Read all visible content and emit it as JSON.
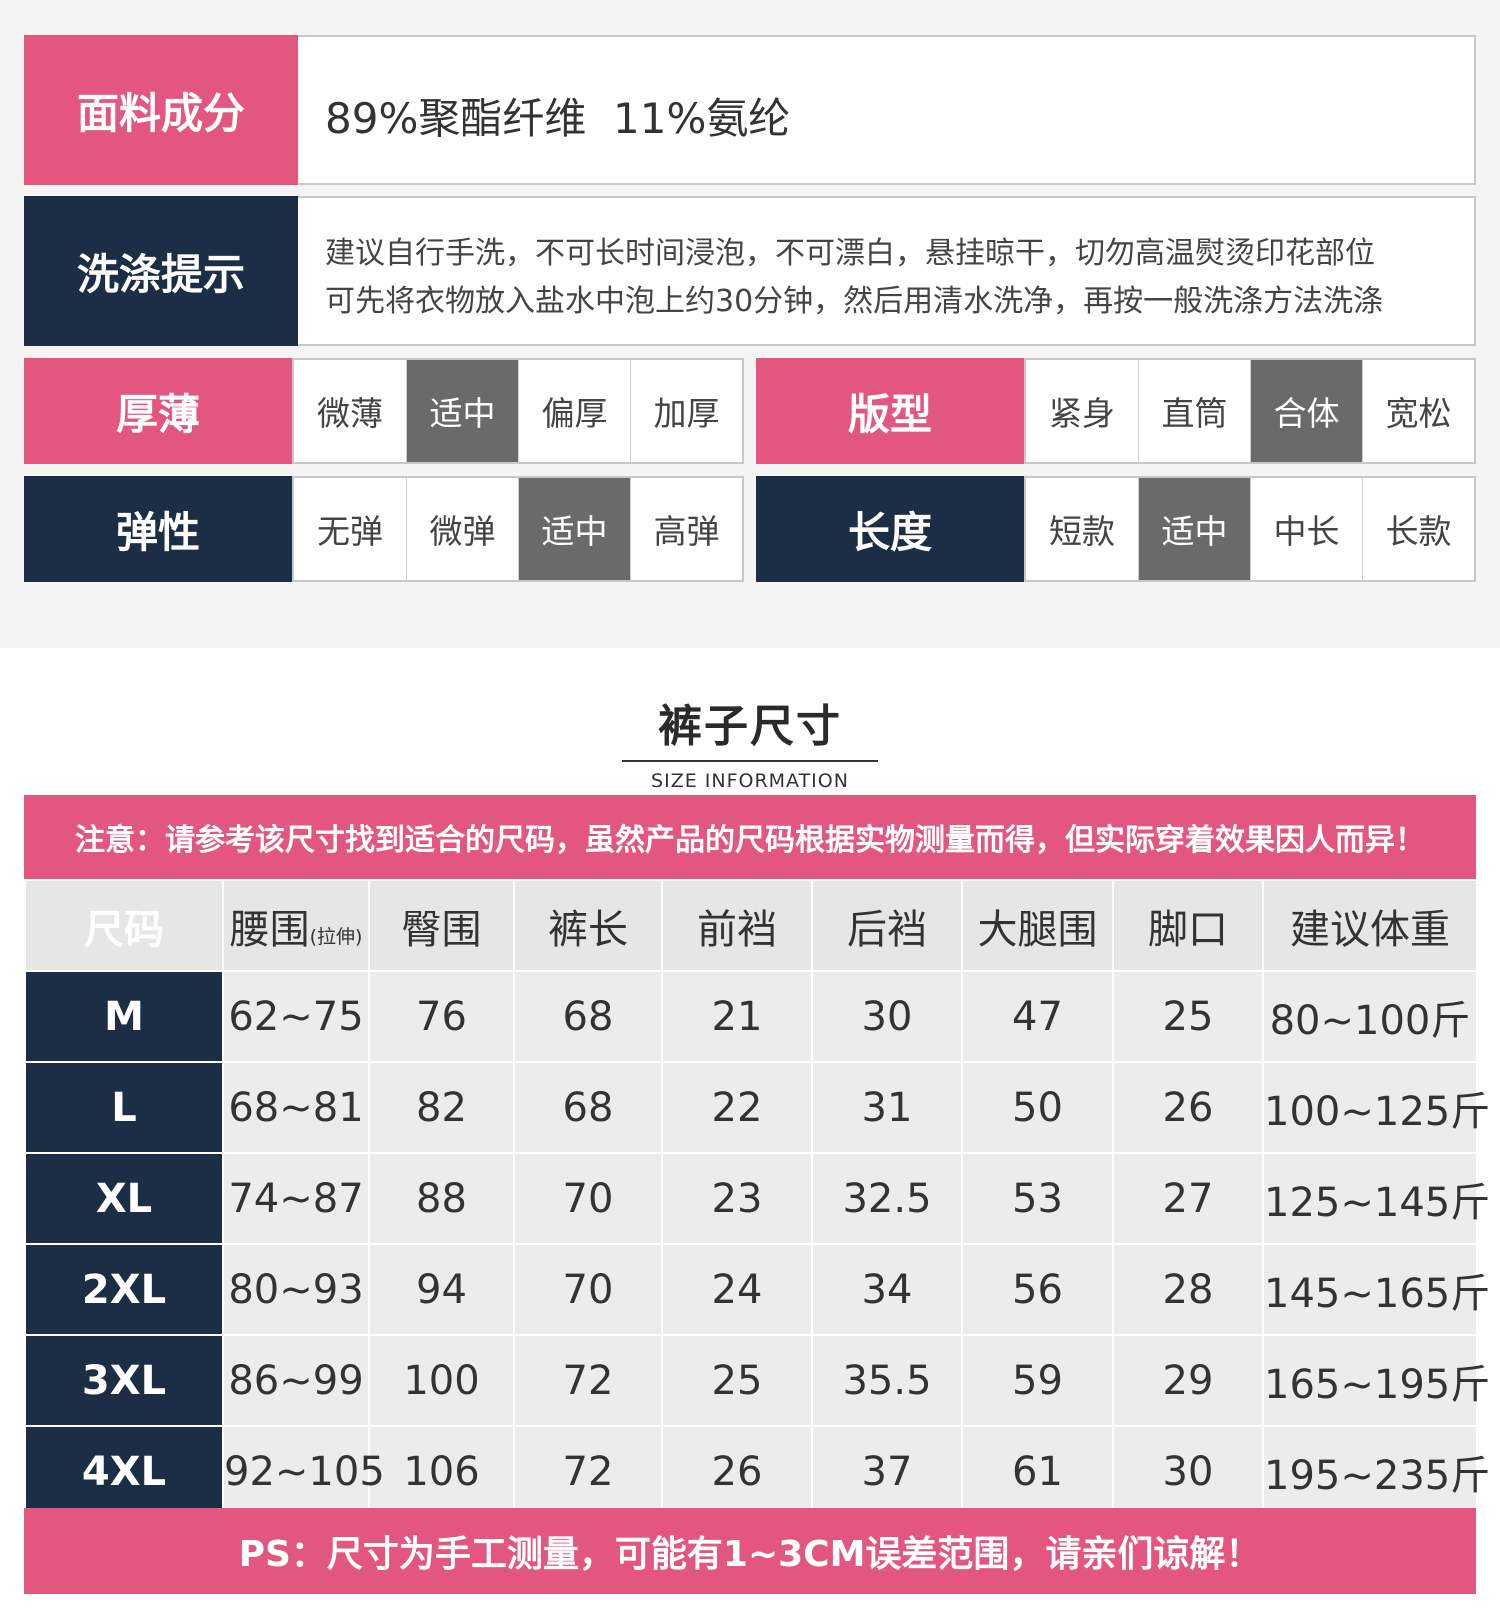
{
  "material": {
    "label": "面料成分",
    "value": "89%聚酯纤维  11%氨纶"
  },
  "washing": {
    "label": "洗涤提示",
    "line1": "建议自行手洗，不可长时间浸泡，不可漂白，悬挂晾干，切勿高温熨烫印花部位",
    "line2": "可先将衣物放入盐水中泡上约30分钟，然后用清水洗净，再按一般洗涤方法洗涤"
  },
  "attributes": {
    "thickness": {
      "label": "厚薄",
      "options": [
        "微薄",
        "适中",
        "偏厚",
        "加厚"
      ],
      "selected": "适中"
    },
    "fit": {
      "label": "版型",
      "options": [
        "紧身",
        "直筒",
        "合体",
        "宽松"
      ],
      "selected": "合体"
    },
    "elasticity": {
      "label": "弹性",
      "options": [
        "无弹",
        "微弹",
        "适中",
        "高弹"
      ],
      "selected": "适中"
    },
    "length": {
      "label": "长度",
      "options": [
        "短款",
        "适中",
        "中长",
        "长款"
      ],
      "selected": "适中"
    }
  },
  "size_section": {
    "title": "裤子尺寸",
    "subtitle": "SIZE INFORMATION",
    "note": "注意：请参考该尺寸找到适合的尺码，虽然产品的尺码根据实物测量而得，但实际穿着效果因人而异！",
    "headers": [
      "尺码",
      "腰围",
      "臀围",
      "裤长",
      "前裆",
      "后裆",
      "大腿围",
      "脚口",
      "建议体重"
    ],
    "waist_note": "(拉伸)",
    "rows": [
      [
        "M",
        "62~75",
        "76",
        "68",
        "21",
        "30",
        "47",
        "25",
        "80~100斤"
      ],
      [
        "L",
        "68~81",
        "82",
        "68",
        "22",
        "31",
        "50",
        "26",
        "100~125斤"
      ],
      [
        "XL",
        "74~87",
        "88",
        "70",
        "23",
        "32.5",
        "53",
        "27",
        "125~145斤"
      ],
      [
        "2XL",
        "80~93",
        "94",
        "70",
        "24",
        "34",
        "56",
        "28",
        "145~165斤"
      ],
      [
        "3XL",
        "86~99",
        "100",
        "72",
        "25",
        "35.5",
        "59",
        "29",
        "165~195斤"
      ],
      [
        "4XL",
        "92~105",
        "106",
        "72",
        "26",
        "37",
        "61",
        "30",
        "195~235斤"
      ]
    ],
    "ps": "PS：尺寸为手工测量，可能有1~3CM误差范围，请亲们谅解！"
  },
  "colors": {
    "pink": "#e25680",
    "navy": "#1c2e45",
    "selected": "#6a6a6a"
  }
}
